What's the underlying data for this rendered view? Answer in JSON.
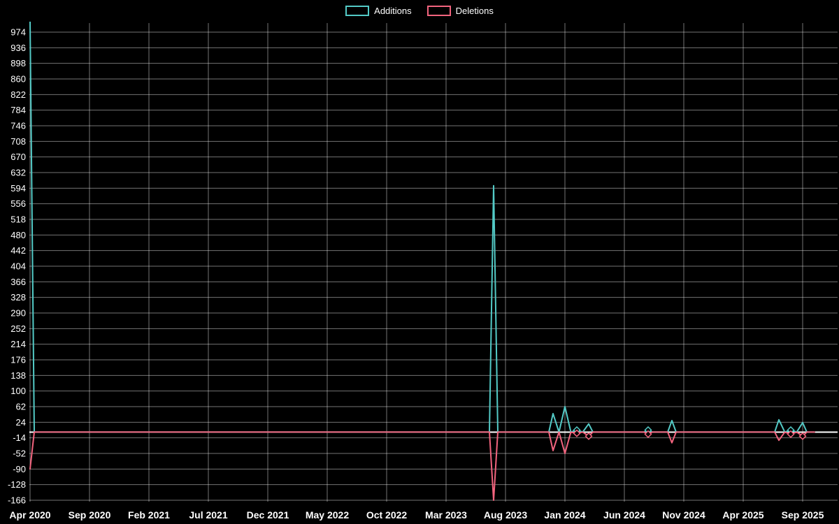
{
  "page": {
    "background": "#000000"
  },
  "chart_data": {
    "type": "line",
    "title": "",
    "legend_position": "top-center",
    "grid": true,
    "x_unit": "month",
    "categories": [
      "Apr 2020",
      "May 2020",
      "Jun 2020",
      "Jul 2020",
      "Aug 2020",
      "Sep 2020",
      "Oct 2020",
      "Nov 2020",
      "Dec 2020",
      "Jan 2021",
      "Feb 2021",
      "Mar 2021",
      "Apr 2021",
      "May 2021",
      "Jun 2021",
      "Jul 2021",
      "Aug 2021",
      "Sep 2021",
      "Oct 2021",
      "Nov 2021",
      "Dec 2021",
      "Jan 2022",
      "Feb 2022",
      "Mar 2022",
      "Apr 2022",
      "May 2022",
      "Jun 2022",
      "Jul 2022",
      "Aug 2022",
      "Sep 2022",
      "Oct 2022",
      "Nov 2022",
      "Dec 2022",
      "Jan 2023",
      "Feb 2023",
      "Mar 2023",
      "Apr 2023",
      "May 2023",
      "Jun 2023",
      "Jul 2023",
      "Aug 2023",
      "Sep 2023",
      "Oct 2023",
      "Nov 2023",
      "Dec 2023",
      "Jan 2024",
      "Feb 2024",
      "Mar 2024",
      "Apr 2024",
      "May 2024",
      "Jun 2024",
      "Jul 2024",
      "Aug 2024",
      "Sep 2024",
      "Oct 2024",
      "Nov 2024",
      "Dec 2024",
      "Jan 2025",
      "Feb 2025",
      "Mar 2025",
      "Apr 2025",
      "May 2025",
      "Jun 2025",
      "Jul 2025",
      "Aug 2025",
      "Sep 2025",
      "Oct 2025"
    ],
    "series": [
      {
        "name": "Additions",
        "color": "#53cac6",
        "values": [
          1000,
          0,
          0,
          0,
          0,
          0,
          0,
          0,
          0,
          0,
          0,
          0,
          0,
          0,
          0,
          0,
          0,
          0,
          0,
          0,
          0,
          0,
          0,
          0,
          0,
          0,
          0,
          0,
          0,
          0,
          0,
          0,
          0,
          0,
          0,
          0,
          0,
          0,
          0,
          600,
          0,
          0,
          0,
          0,
          45,
          62,
          5,
          20,
          0,
          0,
          0,
          0,
          5,
          0,
          28,
          0,
          0,
          0,
          0,
          0,
          0,
          0,
          0,
          30,
          5,
          23,
          0
        ]
      },
      {
        "name": "Deletions",
        "color": "#f2647e",
        "values": [
          -90,
          0,
          0,
          0,
          0,
          0,
          0,
          0,
          0,
          0,
          0,
          0,
          0,
          0,
          0,
          0,
          0,
          0,
          0,
          0,
          0,
          0,
          0,
          0,
          0,
          0,
          0,
          0,
          0,
          0,
          0,
          0,
          0,
          0,
          0,
          0,
          0,
          0,
          0,
          -166,
          0,
          0,
          0,
          0,
          -45,
          -52,
          -3,
          -10,
          0,
          0,
          0,
          0,
          -5,
          0,
          -26,
          0,
          0,
          0,
          0,
          0,
          0,
          0,
          0,
          -20,
          -5,
          -10,
          0
        ]
      }
    ],
    "y_ticks": [
      974,
      936,
      898,
      860,
      822,
      784,
      746,
      708,
      670,
      632,
      594,
      556,
      518,
      480,
      442,
      404,
      366,
      328,
      290,
      252,
      214,
      176,
      138,
      100,
      62,
      24,
      -14,
      -52,
      -90,
      -128,
      -166
    ],
    "y_tick_step": 38,
    "ylim": [
      -166,
      974
    ],
    "x_tick_labels": [
      "Apr 2020",
      "Sep 2020",
      "Feb 2021",
      "Jul 2021",
      "Dec 2021",
      "May 2022",
      "Oct 2022",
      "Mar 2023",
      "Aug 2023",
      "Jan 2024",
      "Jun 2024",
      "Nov 2024",
      "Apr 2025",
      "Sep 2025"
    ],
    "x_tick_month_indices": [
      0,
      5,
      10,
      15,
      20,
      25,
      30,
      35,
      40,
      45,
      50,
      55,
      60,
      65
    ],
    "colors": {
      "background": "#000000",
      "grid": "rgba(255,255,255,0.45)",
      "zero_line": "#ffffff",
      "axis_text": "#ffffff"
    }
  }
}
